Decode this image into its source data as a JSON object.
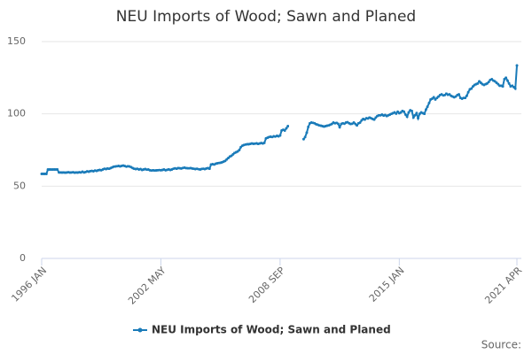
{
  "chart_data": {
    "type": "line",
    "title": "NEU Imports of Wood; Sawn and Planed",
    "source": "Source:",
    "categories": [
      "1996 JAN",
      null,
      null,
      null,
      null,
      null,
      null,
      null,
      null,
      null,
      null,
      null,
      null,
      null,
      null,
      null,
      null,
      null,
      null,
      null,
      null,
      null,
      null,
      null,
      null,
      null,
      null,
      null,
      null,
      null,
      null,
      null,
      null,
      null,
      null,
      null,
      null,
      null,
      null,
      null,
      null,
      null,
      null,
      null,
      null,
      null,
      null,
      null,
      null,
      null,
      null,
      null,
      null,
      null,
      null,
      null,
      null,
      null,
      null,
      null,
      null,
      null,
      null,
      null,
      null,
      null,
      null,
      null,
      null,
      null,
      null,
      null,
      null,
      null,
      null,
      null,
      "2002 MAY",
      null,
      null,
      null,
      null,
      null,
      null,
      null,
      null,
      null,
      null,
      null,
      null,
      null,
      null,
      null,
      null,
      null,
      null,
      null,
      null,
      null,
      null,
      null,
      null,
      null,
      null,
      null,
      null,
      null,
      null,
      null,
      null,
      null,
      null,
      null,
      null,
      null,
      null,
      null,
      null,
      null,
      null,
      null,
      null,
      null,
      null,
      null,
      null,
      null,
      null,
      null,
      null,
      null,
      null,
      null,
      null,
      null,
      null,
      null,
      null,
      null,
      null,
      null,
      null,
      null,
      null,
      null,
      null,
      null,
      null,
      null,
      null,
      null,
      null,
      null,
      "2008 SEP",
      null,
      null,
      null,
      null,
      null,
      null,
      null,
      null,
      null,
      null,
      null,
      null,
      null,
      null,
      null,
      null,
      null,
      null,
      null,
      null,
      null,
      null,
      null,
      null,
      null,
      null,
      null,
      null,
      null,
      null,
      null,
      null,
      null,
      null,
      null,
      null,
      null,
      null,
      null,
      null,
      null,
      null,
      null,
      null,
      null,
      null,
      null,
      null,
      null,
      null,
      null,
      null,
      null,
      null,
      null,
      null,
      null,
      null,
      null,
      null,
      null,
      null,
      null,
      null,
      null,
      null,
      null,
      null,
      null,
      null,
      null,
      null,
      null,
      null,
      null,
      "2015 JAN",
      null,
      null,
      null,
      null,
      null,
      null,
      null,
      null,
      null,
      null,
      null,
      null,
      null,
      null,
      null,
      null,
      null,
      null,
      null,
      null,
      null,
      null,
      null,
      null,
      null,
      null,
      null,
      null,
      null,
      null,
      null,
      null,
      null,
      null,
      null,
      null,
      null,
      null,
      null,
      null,
      null,
      null,
      null,
      null,
      null,
      null,
      null,
      null,
      null,
      null,
      null,
      null,
      null,
      null,
      null,
      null,
      null,
      null,
      null,
      null,
      null,
      null,
      null,
      null,
      null,
      null,
      null,
      null,
      null,
      null,
      null,
      null,
      null,
      null,
      "2021 APR"
    ],
    "series": [
      {
        "name": "NEU Imports of Wood; Sawn and Planed",
        "color": "#1a7bb9",
        "values": [
          58.5,
          58.5,
          58.5,
          58.5,
          61.5,
          61.5,
          61.5,
          61.5,
          61.5,
          61.5,
          61.5,
          59.5,
          59.5,
          59.4,
          59.5,
          59.3,
          59.5,
          59.6,
          59.4,
          59.5,
          59.6,
          59.3,
          59.5,
          59.4,
          59.6,
          59.5,
          60,
          59.5,
          59.8,
          60.2,
          60,
          60.4,
          60.5,
          60.3,
          60.8,
          60.5,
          61,
          61.2,
          61,
          61.5,
          62,
          61.8,
          62.2,
          62,
          62.5,
          63,
          63.5,
          63.6,
          63.8,
          64,
          63.7,
          64,
          64.2,
          63.9,
          63.5,
          63.8,
          63.6,
          63.2,
          62.5,
          62,
          61.8,
          62,
          61.5,
          61.8,
          61.2,
          61.5,
          61.8,
          61.4,
          61.5,
          61,
          60.8,
          61,
          60.8,
          60.9,
          61,
          61.1,
          61,
          61.2,
          61.5,
          61,
          61.3,
          61.6,
          61.2,
          61.5,
          62,
          62.3,
          62,
          62.5,
          62.4,
          62.2,
          62.6,
          62.8,
          62.5,
          62.4,
          62.3,
          62.5,
          62.2,
          62,
          61.8,
          62,
          61.7,
          61.5,
          61.9,
          62,
          61.8,
          62.2,
          62.5,
          62,
          65,
          65.2,
          65,
          65.5,
          65.8,
          66,
          66.2,
          66.5,
          67,
          67.5,
          68.5,
          69.5,
          70.5,
          71,
          72,
          73,
          73.5,
          74,
          75,
          77,
          78,
          78.5,
          78.8,
          79,
          79,
          79.2,
          79.5,
          79.3,
          79.4,
          79.6,
          79.2,
          79.5,
          79.8,
          79.5,
          80,
          83,
          83.5,
          84,
          84.2,
          84,
          84.5,
          84.3,
          84.8,
          84.5,
          85,
          88.5,
          89,
          88.5,
          90,
          91.5,
          null,
          null,
          null,
          null,
          null,
          null,
          null,
          null,
          null,
          82.5,
          84,
          87,
          91,
          93.5,
          94,
          93.8,
          93.5,
          92.8,
          92.5,
          92,
          91.8,
          91.5,
          91.2,
          91.5,
          91.8,
          92,
          92.5,
          93,
          94,
          93.5,
          93.8,
          93.2,
          90.8,
          93,
          93.5,
          93.2,
          94,
          94.2,
          93.5,
          93,
          93.2,
          94,
          93,
          92,
          93.5,
          94,
          95.5,
          96.5,
          96,
          97,
          96.8,
          97.5,
          97,
          96.5,
          96,
          97.5,
          98.5,
          99,
          99,
          99.5,
          98.8,
          99.2,
          98.5,
          99,
          99.5,
          100,
          100.5,
          101,
          100.2,
          101.5,
          100.5,
          101,
          102,
          101.5,
          99.5,
          98,
          101,
          102.5,
          102,
          97.5,
          99,
          100.5,
          97,
          100,
          101,
          100.5,
          100,
          103,
          105,
          107.5,
          110,
          110.5,
          111.5,
          110,
          111,
          112,
          113,
          113.5,
          112.8,
          113,
          114,
          113.2,
          113.5,
          112.5,
          112,
          111.5,
          112,
          113,
          113.5,
          111,
          110.5,
          111,
          111,
          112.5,
          115,
          117,
          117.5,
          119,
          120,
          120.5,
          121,
          122.5,
          121.5,
          120.5,
          120,
          120.5,
          121,
          122,
          123.5,
          124,
          123,
          122.5,
          121.5,
          120.5,
          119.5,
          119.5,
          119,
          124,
          125,
          123,
          121,
          119,
          119.5,
          118.5,
          117.5,
          133.5
        ]
      }
    ],
    "ylim": [
      0,
      150
    ],
    "yticks": [
      0,
      50,
      100,
      150
    ],
    "grid": true,
    "legend": "bottom"
  }
}
